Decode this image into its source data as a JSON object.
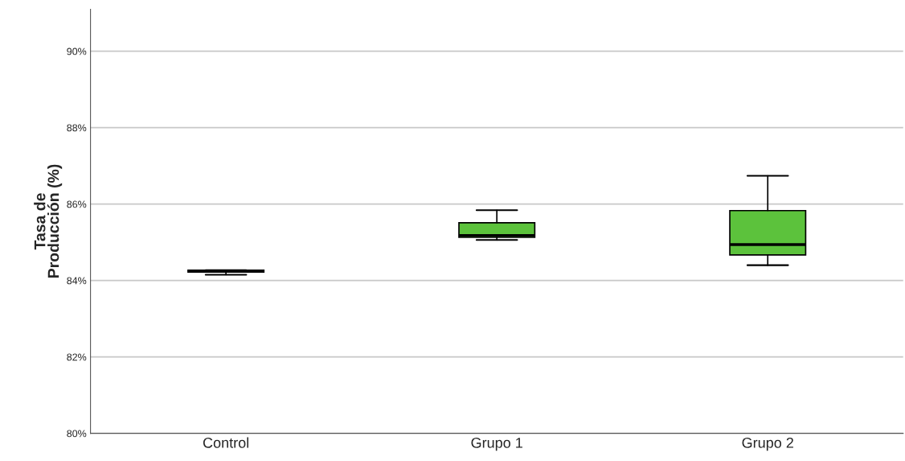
{
  "chart_data": {
    "type": "box",
    "ylabel": "Tasa de\nProducción (%)",
    "categories": [
      "Control",
      "Grupo 1",
      "Grupo 2"
    ],
    "boxes": [
      {
        "low": 84.15,
        "q1": 84.22,
        "median": 84.24,
        "q3": 84.27,
        "high": 84.27
      },
      {
        "low": 85.06,
        "q1": 85.13,
        "median": 85.18,
        "q3": 85.51,
        "high": 85.84
      },
      {
        "low": 84.4,
        "q1": 84.67,
        "median": 84.94,
        "q3": 85.83,
        "high": 86.74
      }
    ],
    "color": "#5cc23c",
    "ylim": [
      80,
      91.1
    ],
    "yticks": [
      {
        "value": 80,
        "label": "80%"
      },
      {
        "value": 82,
        "label": "82%"
      },
      {
        "value": 84,
        "label": "84%"
      },
      {
        "value": 86,
        "label": "86%"
      },
      {
        "value": 88,
        "label": "88%"
      },
      {
        "value": 90,
        "label": "90%"
      }
    ],
    "grid": "y"
  }
}
